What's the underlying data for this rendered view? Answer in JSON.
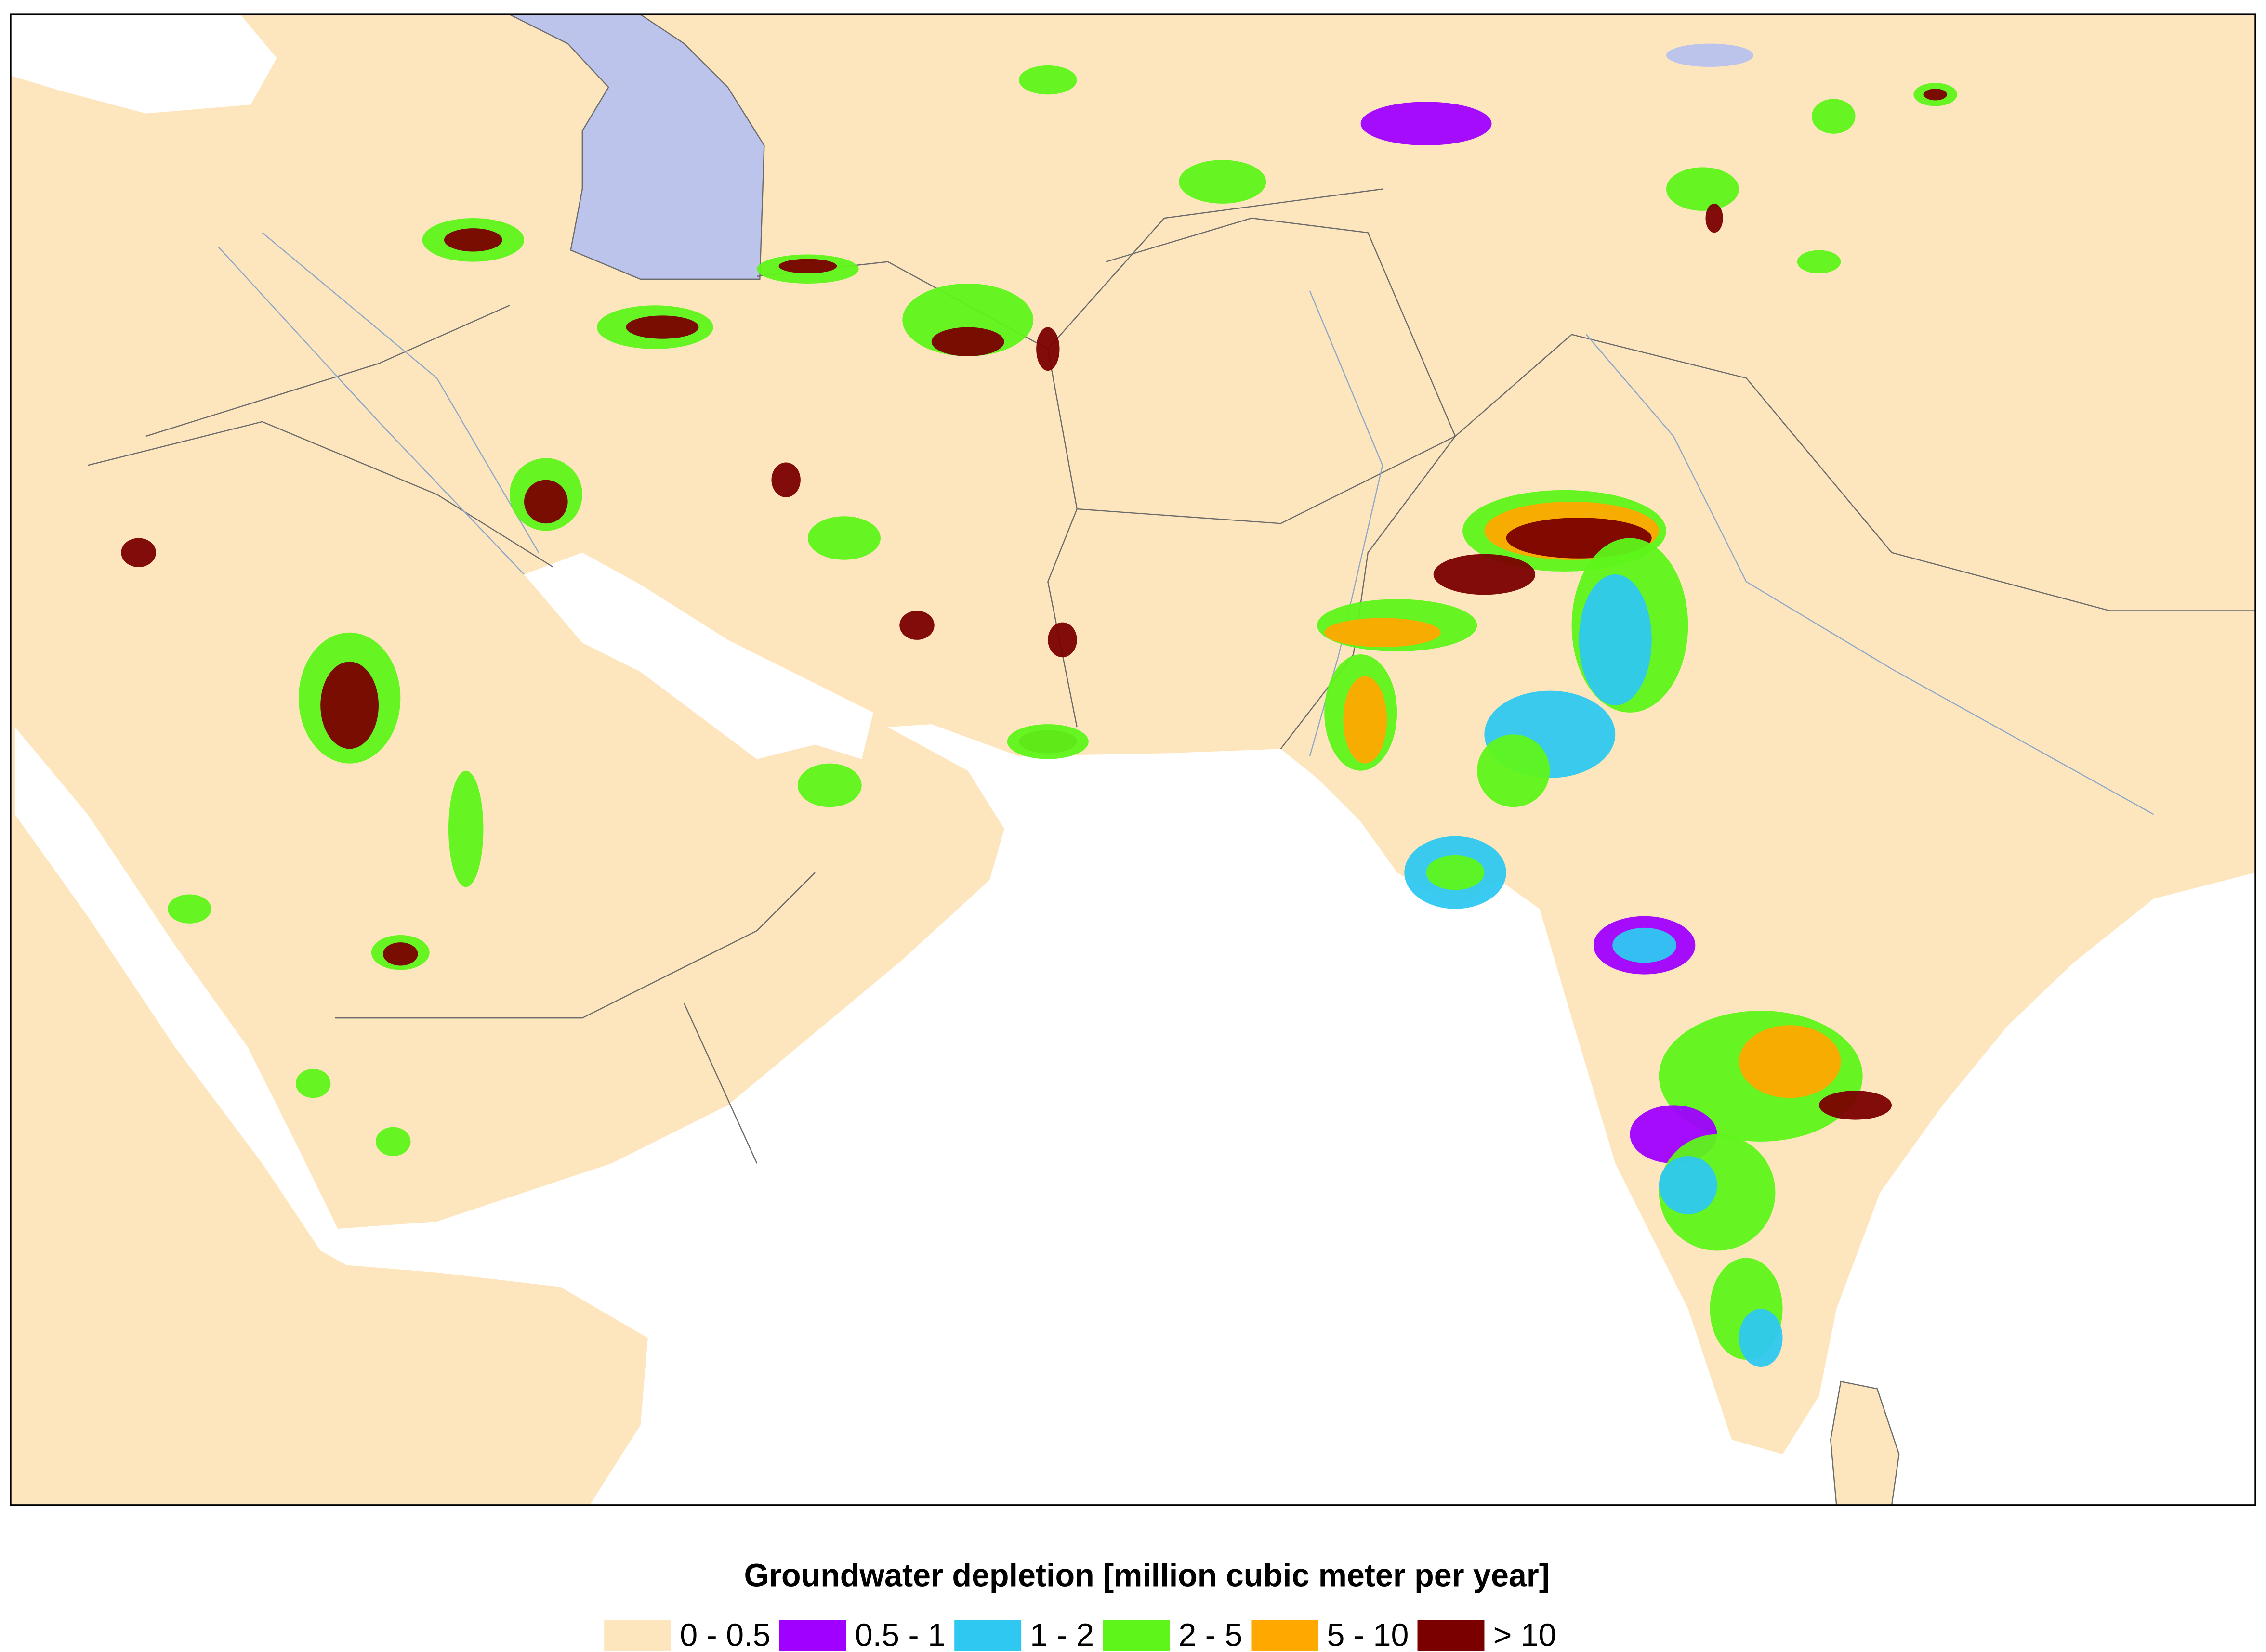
{
  "legend": {
    "title": "Groundwater depletion [million cubic meter per year]",
    "items": [
      {
        "label": "0 - 0.5",
        "color": "#fde6bd"
      },
      {
        "label": "0.5 - 1",
        "color": "#a000ff"
      },
      {
        "label": "1 - 2",
        "color": "#2ec8f0"
      },
      {
        "label": "2 - 5",
        "color": "#5ef51a"
      },
      {
        "label": "5 - 10",
        "color": "#ffa800"
      },
      {
        "label": "> 10",
        "color": "#7a0000"
      }
    ]
  }
}
